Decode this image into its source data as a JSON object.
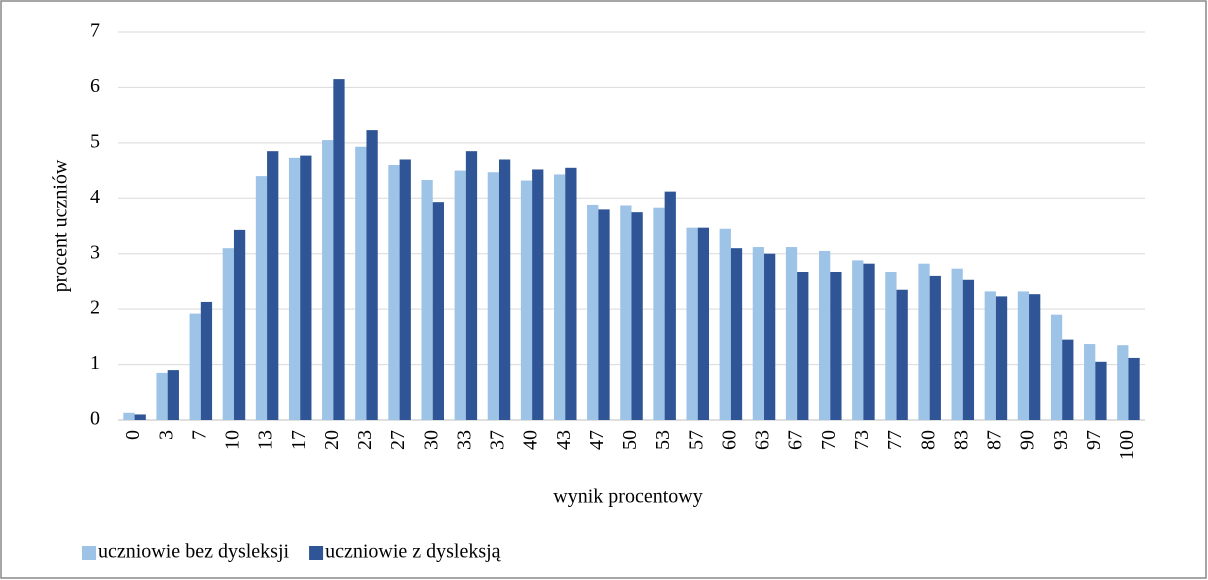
{
  "chart_data": {
    "type": "bar",
    "x_label": "wynik procentowy",
    "y_label": "procent uczniów",
    "categories": [
      "0",
      "3",
      "7",
      "10",
      "13",
      "17",
      "20",
      "23",
      "27",
      "30",
      "33",
      "37",
      "40",
      "43",
      "47",
      "50",
      "53",
      "57",
      "60",
      "63",
      "67",
      "70",
      "73",
      "77",
      "80",
      "83",
      "87",
      "90",
      "93",
      "97",
      "100"
    ],
    "series": [
      {
        "name": "uczniowie bez dysleksji",
        "color": "#9dc3e6",
        "values": [
          0.13,
          0.85,
          1.92,
          3.1,
          4.4,
          4.73,
          5.05,
          4.93,
          4.6,
          4.33,
          4.5,
          4.47,
          4.32,
          4.43,
          3.88,
          3.87,
          3.83,
          3.47,
          3.45,
          3.12,
          3.12,
          3.05,
          2.88,
          2.67,
          2.82,
          2.73,
          2.32,
          2.32,
          1.9,
          1.37,
          1.35
        ]
      },
      {
        "name": "uczniowie z dysleksją",
        "color": "#2f5597",
        "values": [
          0.1,
          0.9,
          2.13,
          3.43,
          4.85,
          4.77,
          6.15,
          5.23,
          4.7,
          3.93,
          4.85,
          4.7,
          4.52,
          4.55,
          3.8,
          3.75,
          4.12,
          3.47,
          3.1,
          3.0,
          2.67,
          2.67,
          2.82,
          2.35,
          2.6,
          2.53,
          2.23,
          2.27,
          1.45,
          1.05,
          1.12
        ]
      }
    ],
    "ylim": [
      0,
      7
    ],
    "yticks": [
      0,
      1,
      2,
      3,
      4,
      5,
      6,
      7
    ],
    "grid": true,
    "legend": "bottom-left"
  }
}
